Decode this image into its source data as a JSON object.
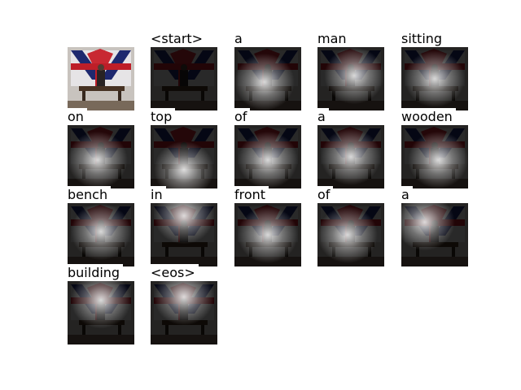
{
  "figure": {
    "tiles": [
      {
        "word": "",
        "spot": null
      },
      {
        "word": "<start>",
        "spot": null
      },
      {
        "word": "a",
        "spot": [
          0.45,
          0.55
        ]
      },
      {
        "word": "man",
        "spot": [
          0.55,
          0.45
        ]
      },
      {
        "word": "sitting",
        "spot": [
          0.5,
          0.5
        ]
      },
      {
        "word": "on",
        "spot": [
          0.45,
          0.55
        ]
      },
      {
        "word": "top",
        "spot": [
          0.5,
          0.7
        ]
      },
      {
        "word": "of",
        "spot": [
          0.5,
          0.55
        ]
      },
      {
        "word": "a",
        "spot": [
          0.5,
          0.5
        ]
      },
      {
        "word": "wooden",
        "spot": [
          0.55,
          0.55
        ]
      },
      {
        "word": "bench",
        "spot": [
          0.5,
          0.45
        ]
      },
      {
        "word": "in",
        "spot": [
          0.5,
          0.2
        ]
      },
      {
        "word": "front",
        "spot": [
          0.5,
          0.5
        ]
      },
      {
        "word": "of",
        "spot": [
          0.45,
          0.5
        ]
      },
      {
        "word": "a",
        "spot": [
          0.35,
          0.3
        ]
      },
      {
        "word": "building",
        "spot": [
          0.5,
          0.3
        ]
      },
      {
        "word": "<eos>",
        "spot": [
          0.5,
          0.25
        ]
      }
    ]
  }
}
